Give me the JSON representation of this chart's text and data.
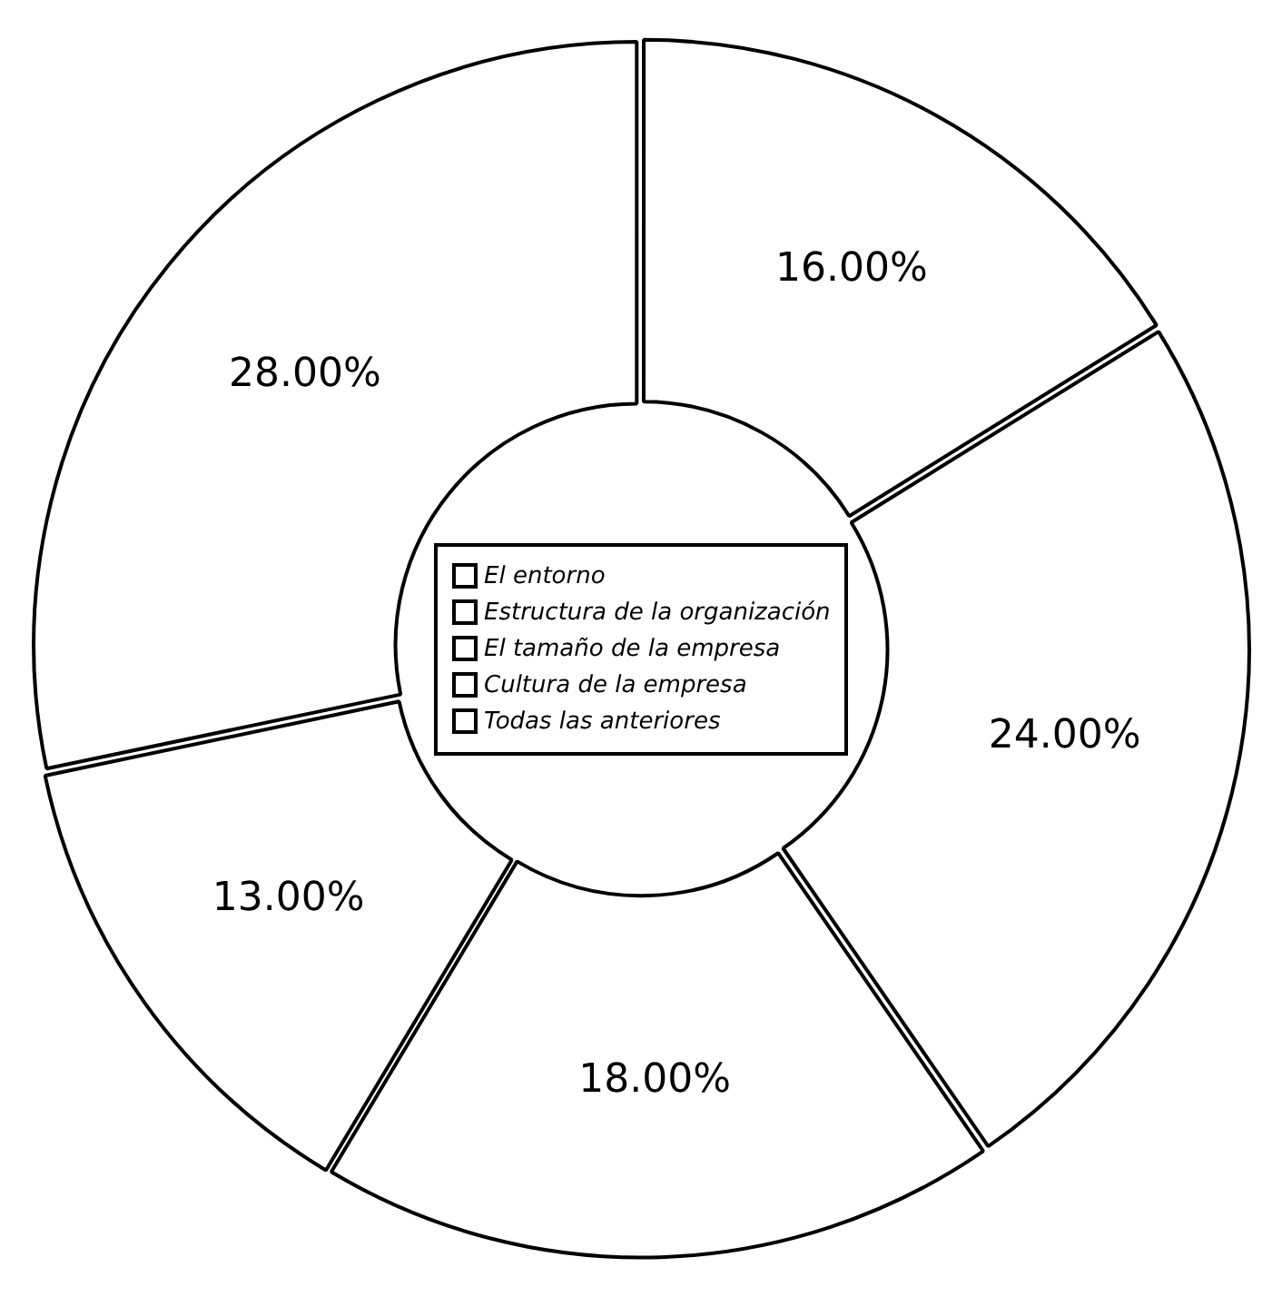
{
  "chart_data": {
    "type": "donut",
    "categories": [
      "El entorno",
      "Estructura de la organización",
      "El tamaño de la empresa",
      "Cultura de la empresa",
      "Todas las anteriores"
    ],
    "values": [
      16,
      24,
      18,
      13,
      28
    ],
    "colors": [
      "#ffffff",
      "#ffffff",
      "#ffffff",
      "#ffffff",
      "#ffffff"
    ],
    "value_labels": [
      "16.00%",
      "24.00%",
      "18.00%",
      "13.00%",
      "28.00%"
    ],
    "legend": "center"
  }
}
